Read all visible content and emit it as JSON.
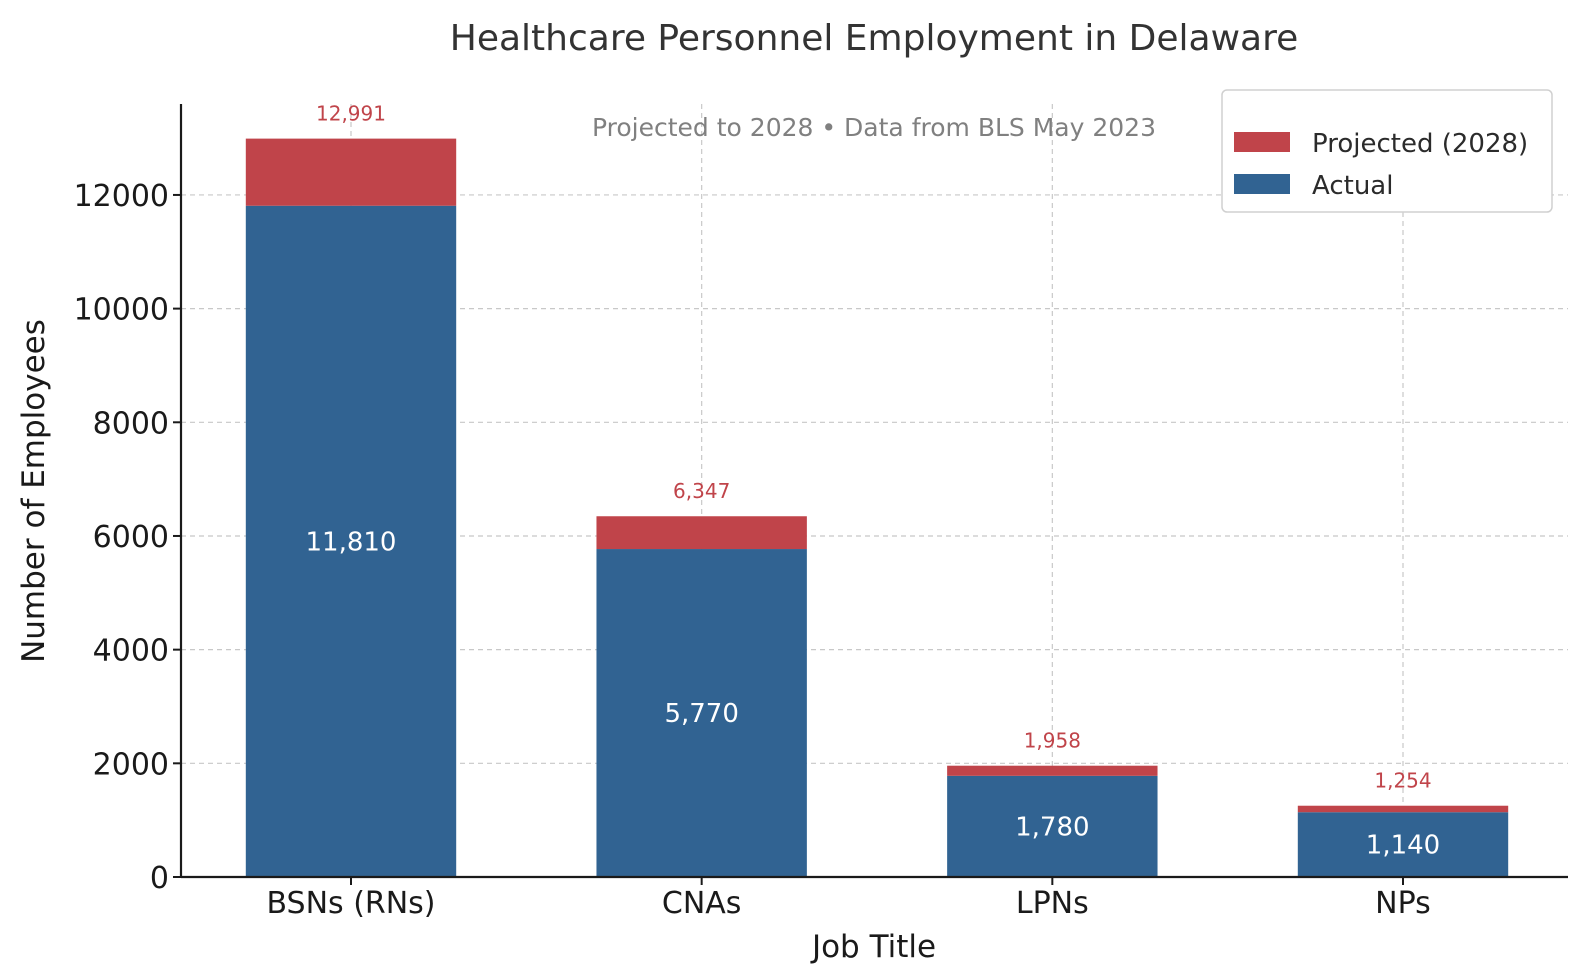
{
  "chart_data": {
    "type": "bar",
    "stacked": true,
    "title": "Healthcare Personnel Employment in Delaware",
    "subtitle": "Projected to 2028 • Data from BLS May 2023",
    "xlabel": "Job Title",
    "ylabel": "Number of Employees",
    "categories": [
      "BSNs (RNs)",
      "CNAs",
      "LPNs",
      "NPs"
    ],
    "series": [
      {
        "name": "Actual",
        "values": [
          11810,
          5770,
          1780,
          1140
        ],
        "labels": [
          "11,810",
          "5,770",
          "1,780",
          "1,140"
        ],
        "color": "#316392"
      },
      {
        "name": "Projected (2028)",
        "totals": [
          12991,
          6347,
          1958,
          1254
        ],
        "labels": [
          "12,991",
          "6,347",
          "1,958",
          "1,254"
        ],
        "color": "#c0444a"
      }
    ],
    "ylim": [
      0,
      13600
    ],
    "yticks": [
      0,
      2000,
      4000,
      6000,
      8000,
      10000,
      12000
    ],
    "ytick_labels": [
      "0",
      "2000",
      "4000",
      "6000",
      "8000",
      "10000",
      "12000"
    ],
    "grid": true,
    "legend": {
      "placement": "top-right",
      "entries": [
        "Projected (2028)",
        "Actual"
      ]
    }
  }
}
